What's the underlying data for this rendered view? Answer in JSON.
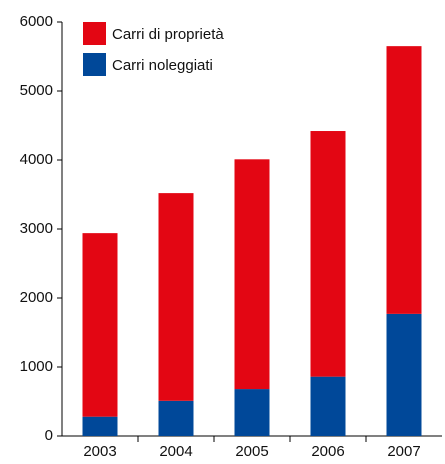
{
  "chart_data": {
    "type": "stacked_bar",
    "categories": [
      "2003",
      "2004",
      "2005",
      "2006",
      "2007"
    ],
    "series": [
      {
        "name": "Carri di proprietà",
        "color": "#e30613",
        "values": [
          2660,
          3010,
          3330,
          3560,
          3880
        ]
      },
      {
        "name": "Carri noleggiati",
        "color": "#004899",
        "values": [
          280,
          510,
          680,
          860,
          1770
        ]
      }
    ],
    "ylim": [
      0,
      6000
    ],
    "yticks": [
      0,
      1000,
      2000,
      3000,
      4000,
      5000,
      6000
    ],
    "legend": "upper left"
  }
}
